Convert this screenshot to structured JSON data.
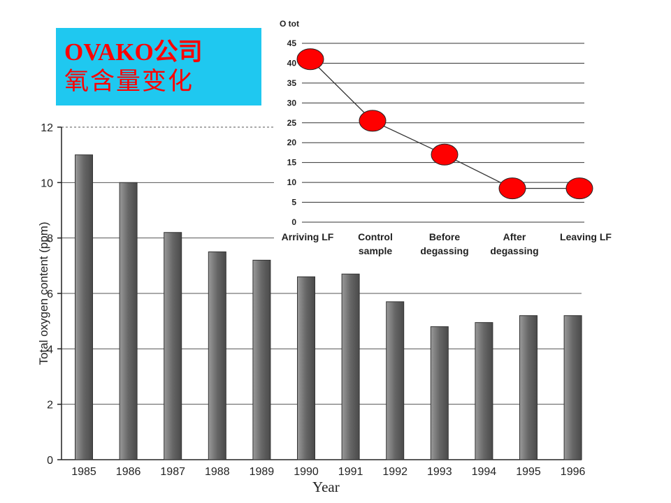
{
  "title": {
    "line1": "OVAKO公司",
    "line2": "氧含量变化"
  },
  "colors": {
    "title_bg": "#1fc8f0",
    "title_text": "#ff0000",
    "marker": "#ff0000",
    "bar": "#666666"
  },
  "chart_data": [
    {
      "type": "bar",
      "categories": [
        "1985",
        "1986",
        "1987",
        "1988",
        "1989",
        "1990",
        "1991",
        "1992",
        "1993",
        "1994",
        "1995",
        "1996"
      ],
      "values": [
        11.0,
        10.0,
        8.2,
        7.5,
        7.2,
        6.6,
        6.7,
        5.7,
        4.8,
        4.95,
        5.2,
        5.2
      ],
      "ylabel": "Total oxygen content (ppm)",
      "xlabel": "Year",
      "ylim": [
        0,
        12
      ],
      "yticks": [
        0,
        2,
        4,
        6,
        8,
        10,
        12
      ],
      "grid": true
    },
    {
      "type": "line",
      "title": "O tot",
      "categories": [
        [
          "Arriving LF"
        ],
        [
          "Control",
          "sample"
        ],
        [
          "Before",
          "degassing"
        ],
        [
          "After",
          "degassing"
        ],
        [
          "Leaving LF"
        ]
      ],
      "values": [
        41,
        25.5,
        17,
        8.5,
        8.5
      ],
      "ylim": [
        0,
        45
      ],
      "yticks": [
        0,
        5,
        10,
        15,
        20,
        25,
        30,
        35,
        40,
        45
      ],
      "grid": true
    }
  ]
}
